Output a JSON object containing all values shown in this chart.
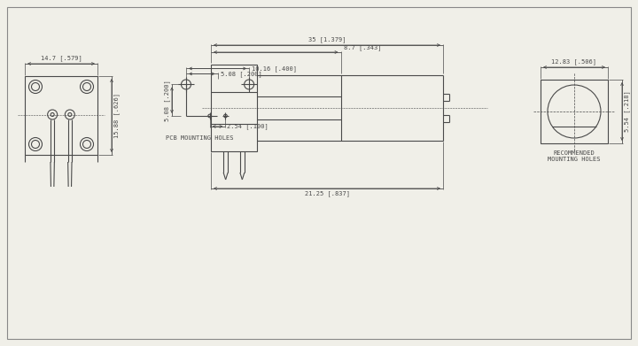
{
  "bg_color": "#f0efe8",
  "line_color": "#4a4a4a",
  "dim_color": "#4a4a4a",
  "font_size": 5.0,
  "fig_width": 7.2,
  "fig_height": 3.91,
  "labels": {
    "pcb_mounting": "PCB MOUNTING HOLES",
    "rec_mounting": "RECOMMENDED\nMOUNTING HOLES",
    "dim_10_16": "10.16 [.400]",
    "dim_5_08_h": "5.08 [.200]",
    "dim_5_08_v": "5.08 [.200]",
    "dim_2_54": "2.54 [.100]",
    "dim_14_7": "14.7 [.579]",
    "dim_15_88": "15.88 [.626]",
    "dim_35": "35 [1.379]",
    "dim_8_7": "8.7 [.343]",
    "dim_21_25": "21.25 [.837]",
    "dim_12_83": "12.83 [.506]",
    "dim_5_54": "5.54 [.218]"
  }
}
